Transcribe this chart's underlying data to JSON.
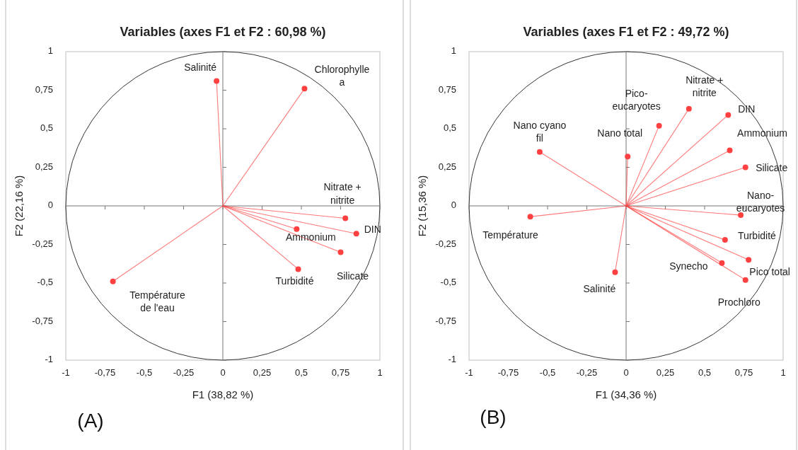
{
  "chart_data": [
    {
      "type": "scatter",
      "title": "Variables (axes F1 et F2 : 60,98 %)",
      "xlabel": "F1 (38,82 %)",
      "ylabel": "F2 (22,16 %)",
      "xlim": [
        -1,
        1
      ],
      "ylim": [
        -1,
        1
      ],
      "xticks": [
        -1,
        {
          "value": -0.75,
          "label": "-0,75"
        },
        {
          "value": -0.5,
          "label": "-0,5"
        },
        {
          "value": -0.25,
          "label": "-0,25"
        },
        0,
        {
          "value": 0.25,
          "label": "0,25"
        },
        {
          "value": 0.5,
          "label": "0,5"
        },
        {
          "value": 0.75,
          "label": "0,75"
        },
        1
      ],
      "yticks": [
        -1,
        {
          "value": -0.75,
          "label": "-0,75"
        },
        {
          "value": -0.5,
          "label": "-0,5"
        },
        {
          "value": -0.25,
          "label": "-0,25"
        },
        0,
        {
          "value": 0.25,
          "label": "0,25"
        },
        {
          "value": 0.5,
          "label": "0,5"
        },
        {
          "value": 0.75,
          "label": "0,75"
        },
        1
      ],
      "marker": "circle",
      "series": [
        {
          "color": "#ff4040",
          "x": [
            -0.04,
            0.52,
            0.78,
            0.85,
            0.47,
            0.75,
            0.48,
            -0.7
          ],
          "values": [
            0.81,
            0.76,
            -0.08,
            -0.18,
            -0.15,
            -0.3,
            -0.41,
            -0.49
          ]
        }
      ],
      "annotations": [
        {
          "text": "Salinité",
          "x": -0.04,
          "y": 0.81
        },
        {
          "text": "Chlorophylle\na",
          "x": 0.52,
          "y": 0.76
        },
        {
          "text": "Nitrate +\nnitrite",
          "x": 0.78,
          "y": -0.08
        },
        {
          "text": "DIN",
          "x": 0.85,
          "y": -0.18
        },
        {
          "text": "Ammonium",
          "x": 0.47,
          "y": -0.15
        },
        {
          "text": "Silicate",
          "x": 0.75,
          "y": -0.3
        },
        {
          "text": "Turbidité",
          "x": 0.48,
          "y": -0.41
        },
        {
          "text": "Température\nde l'eau",
          "x": -0.7,
          "y": -0.49
        },
        "(A)"
      ]
    },
    {
      "type": "scatter",
      "title": "Variables (axes F1 et F2 : 49,72 %)",
      "xlabel": "F1 (34,36 %)",
      "ylabel": "F2 (15,36 %)",
      "xlim": [
        -1,
        1
      ],
      "ylim": [
        -1,
        1
      ],
      "xticks": [
        -1,
        {
          "value": -0.75,
          "label": "-0,75"
        },
        {
          "value": -0.5,
          "label": "-0,5"
        },
        {
          "value": -0.25,
          "label": "-0,25"
        },
        0,
        {
          "value": 0.25,
          "label": "0,25"
        },
        {
          "value": 0.5,
          "label": "0,5"
        },
        {
          "value": 0.75,
          "label": "0,75"
        },
        1
      ],
      "yticks": [
        -1,
        {
          "value": -0.75,
          "label": "-0,75"
        },
        {
          "value": -0.5,
          "label": "-0,5"
        },
        {
          "value": -0.25,
          "label": "-0,25"
        },
        0,
        {
          "value": 0.25,
          "label": "0,25"
        },
        {
          "value": 0.5,
          "label": "0,5"
        },
        {
          "value": 0.75,
          "label": "0,75"
        },
        1
      ],
      "marker": "circle",
      "series": [
        {
          "color": "#ff4040",
          "x": [
            -0.55,
            -0.61,
            0.01,
            0.21,
            0.4,
            0.65,
            0.66,
            0.76,
            0.73,
            0.63,
            0.78,
            0.61,
            0.76,
            -0.07
          ],
          "values": [
            0.35,
            -0.07,
            0.32,
            0.52,
            0.63,
            0.59,
            0.36,
            0.25,
            -0.06,
            -0.22,
            -0.35,
            -0.37,
            -0.48,
            -0.43
          ]
        }
      ],
      "annotations": [
        {
          "text": "Nano cyano\nfil",
          "x": -0.55,
          "y": 0.35
        },
        {
          "text": "Température",
          "x": -0.61,
          "y": -0.07
        },
        {
          "text": "Nano total",
          "x": 0.01,
          "y": 0.32
        },
        {
          "text": "Pico-\neucaryotes",
          "x": 0.21,
          "y": 0.52
        },
        {
          "text": "Nitrate +\nnitrite",
          "x": 0.4,
          "y": 0.63
        },
        {
          "text": "DIN",
          "x": 0.65,
          "y": 0.59
        },
        {
          "text": "Ammonium",
          "x": 0.66,
          "y": 0.36
        },
        {
          "text": "Silicate",
          "x": 0.76,
          "y": 0.25
        },
        {
          "text": "Nano-\neucaryotes",
          "x": 0.73,
          "y": -0.06
        },
        {
          "text": "Turbidité",
          "x": 0.63,
          "y": -0.22
        },
        {
          "text": "Pico total",
          "x": 0.78,
          "y": -0.35
        },
        {
          "text": "Synecho",
          "x": 0.61,
          "y": -0.37
        },
        {
          "text": "Prochloro",
          "x": 0.76,
          "y": -0.48
        },
        {
          "text": "Salinité",
          "x": -0.07,
          "y": -0.43
        },
        "(B)"
      ]
    }
  ]
}
